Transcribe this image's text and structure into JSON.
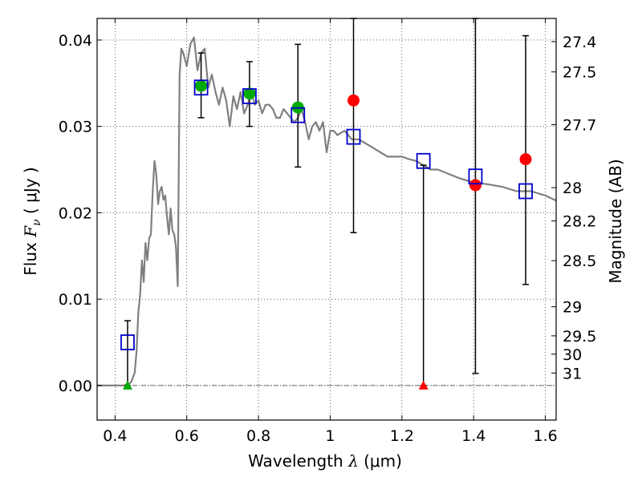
{
  "chart_data": {
    "type": "scatter",
    "title": "",
    "xlabel": {
      "prefix": "Wavelength ",
      "symbol": "λ",
      "units": " (μm)"
    },
    "ylabel": {
      "prefix": "Flux ",
      "symbol": "F",
      "subscript": "ν",
      "units": " ( μJy )"
    },
    "y2label": "Magnitude (AB)",
    "xlim": [
      0.35,
      1.63
    ],
    "ylim": [
      -0.004,
      0.0425
    ],
    "xticks": [
      {
        "value": 0.4,
        "label": "0.4"
      },
      {
        "value": 0.6,
        "label": "0.6"
      },
      {
        "value": 0.8,
        "label": "0.8"
      },
      {
        "value": 1.0,
        "label": "1"
      },
      {
        "value": 1.2,
        "label": "1.2"
      },
      {
        "value": 1.4,
        "label": "1.4"
      },
      {
        "value": 1.6,
        "label": "1.6"
      }
    ],
    "yticks": [
      {
        "value": 0.0,
        "label": "0.00"
      },
      {
        "value": 0.01,
        "label": "0.01"
      },
      {
        "value": 0.02,
        "label": "0.02"
      },
      {
        "value": 0.03,
        "label": "0.03"
      },
      {
        "value": 0.04,
        "label": "0.04"
      }
    ],
    "y2ticks": [
      {
        "value": 27.4,
        "label": "27.4"
      },
      {
        "value": 27.5,
        "label": "27.5"
      },
      {
        "value": 27.7,
        "label": "27.7"
      },
      {
        "value": 28.0,
        "label": "28"
      },
      {
        "value": 28.2,
        "label": "28.2"
      },
      {
        "value": 28.5,
        "label": "28.5"
      },
      {
        "value": 29.0,
        "label": "29"
      },
      {
        "value": 29.5,
        "label": "29.5"
      },
      {
        "value": 30.0,
        "label": "30"
      },
      {
        "value": 31.0,
        "label": "31"
      }
    ],
    "grid": true,
    "model_sed": {
      "color": "#808080",
      "x": [
        0.35,
        0.38,
        0.4,
        0.42,
        0.435,
        0.445,
        0.455,
        0.46,
        0.465,
        0.47,
        0.475,
        0.48,
        0.485,
        0.49,
        0.495,
        0.5,
        0.505,
        0.51,
        0.515,
        0.52,
        0.525,
        0.53,
        0.535,
        0.54,
        0.545,
        0.55,
        0.555,
        0.56,
        0.565,
        0.57,
        0.575,
        0.58,
        0.585,
        0.59,
        0.6,
        0.61,
        0.62,
        0.63,
        0.64,
        0.65,
        0.66,
        0.67,
        0.68,
        0.69,
        0.7,
        0.71,
        0.72,
        0.73,
        0.74,
        0.75,
        0.76,
        0.77,
        0.78,
        0.79,
        0.8,
        0.81,
        0.82,
        0.83,
        0.84,
        0.85,
        0.86,
        0.87,
        0.88,
        0.89,
        0.9,
        0.91,
        0.92,
        0.93,
        0.94,
        0.95,
        0.96,
        0.97,
        0.98,
        0.99,
        1.0,
        1.01,
        1.02,
        1.04,
        1.06,
        1.08,
        1.1,
        1.12,
        1.14,
        1.16,
        1.18,
        1.2,
        1.22,
        1.24,
        1.26,
        1.28,
        1.3,
        1.33,
        1.36,
        1.4,
        1.44,
        1.48,
        1.52,
        1.56,
        1.6,
        1.63
      ],
      "y": [
        0.0,
        0.0,
        0.0,
        0.0,
        0.0001,
        0.0004,
        0.0015,
        0.004,
        0.0085,
        0.0105,
        0.0145,
        0.012,
        0.0165,
        0.0145,
        0.017,
        0.0175,
        0.0225,
        0.026,
        0.0245,
        0.021,
        0.0225,
        0.023,
        0.0215,
        0.022,
        0.0195,
        0.0175,
        0.0205,
        0.018,
        0.0175,
        0.016,
        0.0115,
        0.036,
        0.039,
        0.0385,
        0.037,
        0.0395,
        0.0403,
        0.0365,
        0.0385,
        0.039,
        0.0345,
        0.036,
        0.034,
        0.0325,
        0.0345,
        0.033,
        0.03,
        0.0335,
        0.032,
        0.034,
        0.0315,
        0.0325,
        0.034,
        0.0325,
        0.033,
        0.0315,
        0.0325,
        0.0325,
        0.032,
        0.031,
        0.031,
        0.032,
        0.0315,
        0.031,
        0.0305,
        0.031,
        0.032,
        0.0305,
        0.0285,
        0.03,
        0.0305,
        0.0295,
        0.0305,
        0.027,
        0.0295,
        0.0295,
        0.029,
        0.0295,
        0.0285,
        0.0285,
        0.028,
        0.0275,
        0.027,
        0.0265,
        0.0265,
        0.0265,
        0.0262,
        0.026,
        0.0255,
        0.025,
        0.025,
        0.0245,
        0.024,
        0.0235,
        0.0233,
        0.023,
        0.0225,
        0.0225,
        0.022,
        0.0214
      ]
    },
    "model_photometry": {
      "color": "#0000cc",
      "marker": "square",
      "x": [
        0.435,
        0.64,
        0.775,
        0.91,
        1.065,
        1.26,
        1.405,
        1.545
      ],
      "y": [
        0.005,
        0.0345,
        0.0335,
        0.0313,
        0.0288,
        0.026,
        0.0242,
        0.0225
      ]
    },
    "detections": {
      "color": "#00aa00",
      "marker": "circle",
      "x": [
        0.64,
        0.775,
        0.91
      ],
      "y": [
        0.0347,
        0.0338,
        0.0322
      ]
    },
    "non_detections": {
      "color": "#ff0000",
      "marker": "circle",
      "x": [
        1.065,
        1.405,
        1.545
      ],
      "y": [
        0.033,
        0.0232,
        0.0262
      ]
    },
    "error_bars": [
      {
        "x": 0.435,
        "low": 0.0,
        "high": 0.0075
      },
      {
        "x": 0.64,
        "low": 0.031,
        "high": 0.0385
      },
      {
        "x": 0.775,
        "low": 0.03,
        "high": 0.0375
      },
      {
        "x": 0.91,
        "low": 0.0253,
        "high": 0.0395
      },
      {
        "x": 1.065,
        "low": 0.0177,
        "high": 0.0425
      },
      {
        "x": 1.26,
        "low": 0.0,
        "high": 0.0255
      },
      {
        "x": 1.405,
        "low": 0.0014,
        "high": 0.0425
      },
      {
        "x": 1.545,
        "low": 0.0117,
        "high": 0.0405
      }
    ],
    "upper_limit_markers": [
      {
        "x": 0.435,
        "y": 0.0,
        "color": "#00aa00"
      },
      {
        "x": 1.26,
        "y": 0.0,
        "color": "#ff0000"
      }
    ],
    "zero_line": {
      "y": 0.0,
      "color": "#333333"
    }
  }
}
